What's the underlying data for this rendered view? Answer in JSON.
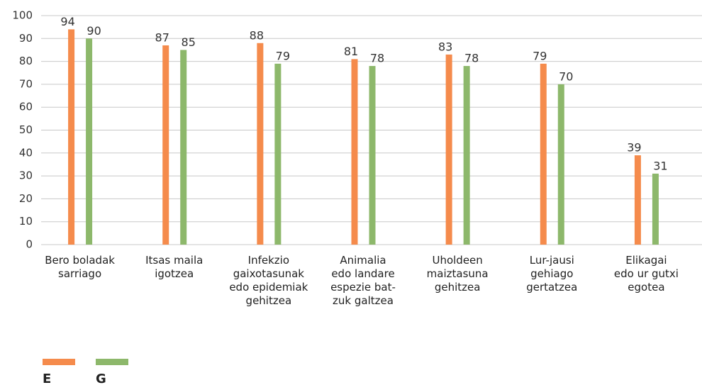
{
  "chart_data": {
    "type": "bar",
    "categories": [
      [
        "Bero boladak",
        "sarriago"
      ],
      [
        "Itsas maila",
        "igotzea"
      ],
      [
        "Infekzio",
        "gaixotasunak",
        "edo epidemiak",
        "gehitzea"
      ],
      [
        "Animalia",
        "edo landare",
        "espezie bat-",
        "zuk galtzea"
      ],
      [
        "Uholdeen",
        "maiztasuna",
        "gehitzea"
      ],
      [
        "Lur-jausi",
        "gehiago",
        "gertatzea"
      ],
      [
        "Elikagai",
        "edo ur gutxi",
        "egotea"
      ]
    ],
    "series": [
      {
        "name": "E",
        "color": "#f58b4c",
        "values": [
          94,
          87,
          88,
          81,
          83,
          79,
          39
        ]
      },
      {
        "name": "G",
        "color": "#8db86b",
        "values": [
          90,
          85,
          79,
          78,
          78,
          70,
          31
        ]
      }
    ],
    "ylim": [
      0,
      100
    ],
    "yticks": [
      0,
      10,
      20,
      30,
      40,
      50,
      60,
      70,
      80,
      90,
      100
    ],
    "grid": true,
    "legend": "bottom-left"
  }
}
